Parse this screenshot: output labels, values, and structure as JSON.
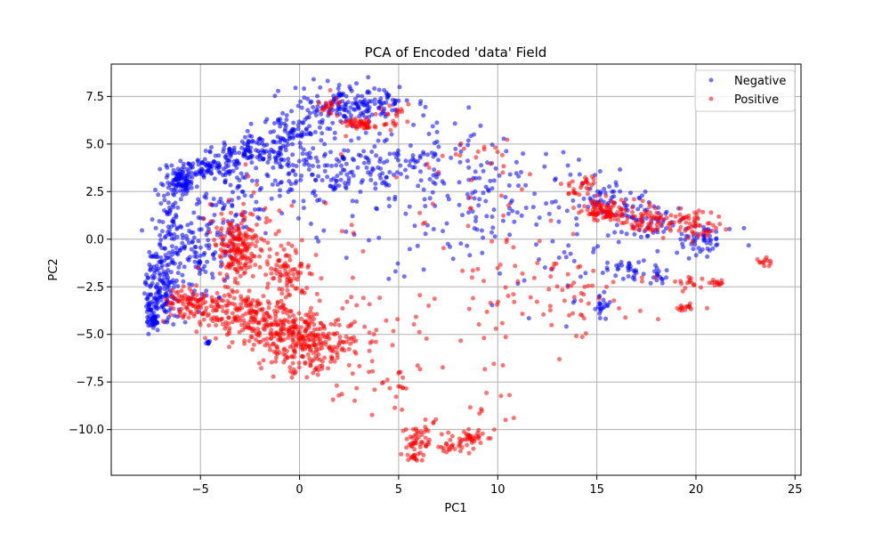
{
  "chart_data": {
    "type": "scatter",
    "title": "PCA of Encoded 'data' Field",
    "xlabel": "PC1",
    "ylabel": "PC2",
    "xlim": [
      -9.5,
      25.3
    ],
    "ylim": [
      -12.4,
      9.2
    ],
    "xticks": [
      -5,
      0,
      5,
      10,
      15,
      20,
      25
    ],
    "xtick_labels": [
      "−5",
      "0",
      "5",
      "10",
      "15",
      "20",
      "25"
    ],
    "yticks": [
      7.5,
      5.0,
      2.5,
      0.0,
      -2.5,
      -5.0,
      -7.5,
      -10.0
    ],
    "ytick_labels": [
      "7.5",
      "5.0",
      "2.5",
      "0.0",
      "−2.5",
      "−5.0",
      "−7.5",
      "−10.0"
    ],
    "grid": true,
    "legend_position": "upper right",
    "series": [
      {
        "name": "Negative",
        "color": "#0000ff",
        "clusters": [
          {
            "cx": -6.0,
            "cy": 3.1,
            "sx": 0.3,
            "sy": 0.4,
            "n": 90
          },
          {
            "cx": -4.5,
            "cy": 3.8,
            "sx": 0.9,
            "sy": 0.3,
            "n": 90
          },
          {
            "cx": -2.5,
            "cy": 4.6,
            "sx": 0.9,
            "sy": 0.4,
            "n": 90
          },
          {
            "cx": -0.5,
            "cy": 5.6,
            "sx": 0.8,
            "sy": 0.6,
            "n": 80
          },
          {
            "cx": 2.0,
            "cy": 7.0,
            "sx": 1.2,
            "sy": 0.5,
            "n": 110
          },
          {
            "cx": 4.0,
            "cy": 7.3,
            "sx": 0.8,
            "sy": 0.4,
            "n": 60
          },
          {
            "cx": -6.5,
            "cy": 0.5,
            "sx": 0.5,
            "sy": 1.4,
            "n": 90
          },
          {
            "cx": -7.0,
            "cy": -2.5,
            "sx": 0.4,
            "sy": 1.0,
            "n": 140
          },
          {
            "cx": -7.4,
            "cy": -4.0,
            "sx": 0.2,
            "sy": 0.4,
            "n": 50
          },
          {
            "cx": -5.0,
            "cy": -1.0,
            "sx": 0.8,
            "sy": 1.2,
            "n": 90
          },
          {
            "cx": -3.5,
            "cy": 1.5,
            "sx": 1.0,
            "sy": 1.0,
            "n": 70
          },
          {
            "cx": 0.0,
            "cy": 3.5,
            "sx": 1.5,
            "sy": 1.0,
            "n": 100
          },
          {
            "cx": 3.0,
            "cy": 3.8,
            "sx": 1.5,
            "sy": 0.8,
            "n": 90
          },
          {
            "cx": 6.5,
            "cy": 4.5,
            "sx": 2.0,
            "sy": 1.0,
            "n": 80
          },
          {
            "cx": 9.0,
            "cy": 2.0,
            "sx": 1.5,
            "sy": 1.5,
            "n": 50
          },
          {
            "cx": 12.0,
            "cy": 2.2,
            "sx": 2.0,
            "sy": 1.5,
            "n": 50
          },
          {
            "cx": 15.5,
            "cy": 2.0,
            "sx": 1.0,
            "sy": 0.5,
            "n": 50
          },
          {
            "cx": 17.5,
            "cy": 0.9,
            "sx": 1.0,
            "sy": 0.5,
            "n": 60
          },
          {
            "cx": 20.5,
            "cy": 0.0,
            "sx": 0.8,
            "sy": 0.4,
            "n": 50
          },
          {
            "cx": 16.5,
            "cy": -1.6,
            "sx": 0.5,
            "sy": 0.2,
            "n": 30
          },
          {
            "cx": 15.2,
            "cy": -3.6,
            "sx": 0.2,
            "sy": 0.3,
            "n": 20
          },
          {
            "cx": 18.0,
            "cy": -2.0,
            "sx": 0.3,
            "sy": 0.3,
            "n": 15
          },
          {
            "cx": 13.0,
            "cy": -2.0,
            "sx": 2.0,
            "sy": 1.5,
            "n": 25
          },
          {
            "cx": -4.6,
            "cy": -5.4,
            "sx": 0.05,
            "sy": 0.05,
            "n": 8
          },
          {
            "cx": 5.0,
            "cy": 1.0,
            "sx": 2.5,
            "sy": 1.5,
            "n": 40
          }
        ]
      },
      {
        "name": "Positive",
        "color": "#ff0000",
        "clusters": [
          {
            "cx": -3.2,
            "cy": -0.5,
            "sx": 0.6,
            "sy": 1.0,
            "n": 170
          },
          {
            "cx": -5.5,
            "cy": -3.5,
            "sx": 0.7,
            "sy": 0.5,
            "n": 90
          },
          {
            "cx": -3.5,
            "cy": -3.8,
            "sx": 0.9,
            "sy": 0.6,
            "n": 110
          },
          {
            "cx": -1.5,
            "cy": -4.5,
            "sx": 0.9,
            "sy": 0.7,
            "n": 150
          },
          {
            "cx": 0.5,
            "cy": -5.5,
            "sx": 1.0,
            "sy": 0.8,
            "n": 220
          },
          {
            "cx": -0.8,
            "cy": -1.8,
            "sx": 0.6,
            "sy": 0.6,
            "n": 80
          },
          {
            "cx": -2.0,
            "cy": 1.0,
            "sx": 1.2,
            "sy": 1.2,
            "n": 40
          },
          {
            "cx": 2.5,
            "cy": -4.8,
            "sx": 1.5,
            "sy": 1.2,
            "n": 60
          },
          {
            "cx": 4.5,
            "cy": -7.5,
            "sx": 1.2,
            "sy": 0.8,
            "n": 30
          },
          {
            "cx": 6.0,
            "cy": -10.5,
            "sx": 0.4,
            "sy": 0.5,
            "n": 50
          },
          {
            "cx": 7.5,
            "cy": -10.8,
            "sx": 0.5,
            "sy": 0.3,
            "n": 30
          },
          {
            "cx": 8.7,
            "cy": -10.4,
            "sx": 0.3,
            "sy": 0.3,
            "n": 25
          },
          {
            "cx": 5.7,
            "cy": -11.4,
            "sx": 0.15,
            "sy": 0.1,
            "n": 12
          },
          {
            "cx": 9.5,
            "cy": -9.0,
            "sx": 0.5,
            "sy": 0.8,
            "n": 15
          },
          {
            "cx": 3.0,
            "cy": 6.0,
            "sx": 0.4,
            "sy": 0.2,
            "n": 45
          },
          {
            "cx": 1.5,
            "cy": 7.0,
            "sx": 0.3,
            "sy": 0.3,
            "n": 20
          },
          {
            "cx": 4.5,
            "cy": 6.5,
            "sx": 0.5,
            "sy": 0.3,
            "n": 20
          },
          {
            "cx": 15.5,
            "cy": 1.5,
            "sx": 0.6,
            "sy": 0.3,
            "n": 90
          },
          {
            "cx": 17.5,
            "cy": 1.0,
            "sx": 0.6,
            "sy": 0.4,
            "n": 60
          },
          {
            "cx": 19.5,
            "cy": 1.0,
            "sx": 0.4,
            "sy": 0.3,
            "n": 30
          },
          {
            "cx": 20.0,
            "cy": 0.5,
            "sx": 0.6,
            "sy": 0.3,
            "n": 30
          },
          {
            "cx": 14.3,
            "cy": 2.8,
            "sx": 0.4,
            "sy": 0.3,
            "n": 30
          },
          {
            "cx": 19.3,
            "cy": -3.6,
            "sx": 0.2,
            "sy": 0.1,
            "n": 15
          },
          {
            "cx": 19.8,
            "cy": -2.3,
            "sx": 0.4,
            "sy": 0.2,
            "n": 15
          },
          {
            "cx": 21.0,
            "cy": -2.3,
            "sx": 0.2,
            "sy": 0.1,
            "n": 12
          },
          {
            "cx": 23.5,
            "cy": -1.2,
            "sx": 0.2,
            "sy": 0.1,
            "n": 12
          },
          {
            "cx": 11.5,
            "cy": -3.0,
            "sx": 2.0,
            "sy": 2.0,
            "n": 40
          },
          {
            "cx": 8.5,
            "cy": -2.0,
            "sx": 2.5,
            "sy": 2.0,
            "n": 25
          },
          {
            "cx": 6.0,
            "cy": 2.5,
            "sx": 3.0,
            "sy": 2.0,
            "n": 25
          },
          {
            "cx": 13.5,
            "cy": -2.5,
            "sx": 1.0,
            "sy": 1.0,
            "n": 20
          },
          {
            "cx": 17.0,
            "cy": -3.5,
            "sx": 1.5,
            "sy": 1.0,
            "n": 15
          },
          {
            "cx": 9.5,
            "cy": 4.5,
            "sx": 1.0,
            "sy": 0.5,
            "n": 15
          }
        ]
      }
    ]
  }
}
